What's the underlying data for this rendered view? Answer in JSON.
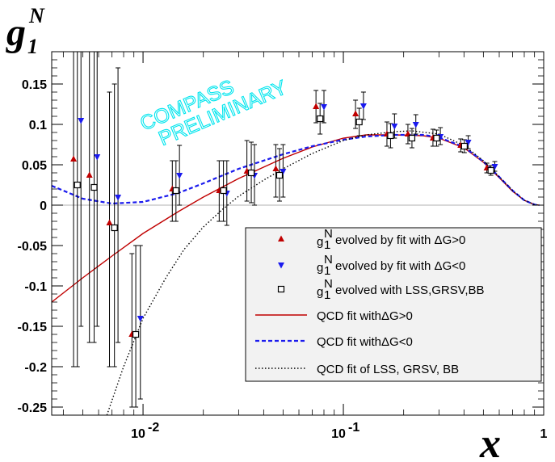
{
  "chart_data": {
    "type": "scatter",
    "x_scale": "log",
    "xlim": [
      0.0035,
      1
    ],
    "ylim": [
      -0.26,
      0.19
    ],
    "x_ticks": [
      {
        "value": 0.01,
        "label": "10"
      },
      {
        "value": 0.1,
        "label": "10"
      },
      {
        "value": 1,
        "label": "1"
      }
    ],
    "x_tick_exponents": [
      "-2",
      "-1",
      ""
    ],
    "y_ticks": [
      {
        "value": 0.15,
        "label": "0.15"
      },
      {
        "value": 0.1,
        "label": "0.1"
      },
      {
        "value": 0.05,
        "label": "0.05"
      },
      {
        "value": 0,
        "label": "0"
      },
      {
        "value": -0.05,
        "label": "-0.05"
      },
      {
        "value": -0.1,
        "label": "-0.1"
      },
      {
        "value": -0.15,
        "label": "-0.15"
      },
      {
        "value": -0.2,
        "label": "-0.2"
      },
      {
        "value": -0.25,
        "label": "-0.25"
      }
    ],
    "ylabel": {
      "main": "g",
      "sub": "1",
      "sup": "N"
    },
    "xlabel": "x",
    "annotation": [
      "COMPASS",
      "PRELIMINARY"
    ],
    "grid": false,
    "legend_position": "bottom-right",
    "colors": {
      "red": "#c00000",
      "blue": "#1a1aee",
      "black": "#000000"
    },
    "series": [
      {
        "name": "evolved by fit with ΔG>0",
        "marker": "triangle-up",
        "color": "#c00000",
        "points": [
          {
            "x": 0.0045,
            "y": 0.057,
            "lo": -0.2,
            "hi": 0.22
          },
          {
            "x": 0.0054,
            "y": 0.037,
            "lo": -0.17,
            "hi": 0.22
          },
          {
            "x": 0.0068,
            "y": -0.022,
            "lo": -0.2,
            "hi": 0.14
          },
          {
            "x": 0.0088,
            "y": -0.16,
            "lo": -0.25,
            "hi": -0.06
          },
          {
            "x": 0.014,
            "y": 0.02,
            "lo": -0.02,
            "hi": 0.055
          },
          {
            "x": 0.024,
            "y": 0.018,
            "lo": -0.02,
            "hi": 0.055
          },
          {
            "x": 0.033,
            "y": 0.042,
            "lo": 0.005,
            "hi": 0.08
          },
          {
            "x": 0.046,
            "y": 0.045,
            "lo": 0.01,
            "hi": 0.075
          },
          {
            "x": 0.073,
            "y": 0.122,
            "lo": 0.102,
            "hi": 0.142
          },
          {
            "x": 0.115,
            "y": 0.113,
            "lo": 0.095,
            "hi": 0.13
          },
          {
            "x": 0.165,
            "y": 0.088,
            "lo": 0.073,
            "hi": 0.103
          },
          {
            "x": 0.21,
            "y": 0.088,
            "lo": 0.076,
            "hi": 0.1
          },
          {
            "x": 0.28,
            "y": 0.083,
            "lo": 0.073,
            "hi": 0.094
          },
          {
            "x": 0.385,
            "y": 0.074,
            "lo": 0.066,
            "hi": 0.082
          },
          {
            "x": 0.52,
            "y": 0.046,
            "lo": 0.04,
            "hi": 0.052
          }
        ]
      },
      {
        "name": "evolved by fit with ΔG<0",
        "marker": "triangle-down",
        "color": "#1a1aee",
        "points": [
          {
            "x": 0.0049,
            "y": 0.105,
            "lo": -0.15,
            "hi": 0.24
          },
          {
            "x": 0.0059,
            "y": 0.06,
            "lo": -0.15,
            "hi": 0.25
          },
          {
            "x": 0.0075,
            "y": 0.01,
            "lo": -0.17,
            "hi": 0.17
          },
          {
            "x": 0.0097,
            "y": -0.14,
            "lo": -0.24,
            "hi": -0.05
          },
          {
            "x": 0.0152,
            "y": 0.037,
            "lo": 0.0,
            "hi": 0.074
          },
          {
            "x": 0.0262,
            "y": 0.015,
            "lo": -0.025,
            "hi": 0.055
          },
          {
            "x": 0.036,
            "y": 0.037,
            "lo": 0.0,
            "hi": 0.075
          },
          {
            "x": 0.05,
            "y": 0.042,
            "lo": 0.01,
            "hi": 0.075
          },
          {
            "x": 0.08,
            "y": 0.122,
            "lo": 0.102,
            "hi": 0.142
          },
          {
            "x": 0.126,
            "y": 0.123,
            "lo": 0.106,
            "hi": 0.14
          },
          {
            "x": 0.18,
            "y": 0.098,
            "lo": 0.083,
            "hi": 0.113
          },
          {
            "x": 0.23,
            "y": 0.1,
            "lo": 0.088,
            "hi": 0.112
          },
          {
            "x": 0.305,
            "y": 0.085,
            "lo": 0.075,
            "hi": 0.096
          },
          {
            "x": 0.42,
            "y": 0.078,
            "lo": 0.07,
            "hi": 0.086
          },
          {
            "x": 0.57,
            "y": 0.048,
            "lo": 0.042,
            "hi": 0.054
          }
        ]
      },
      {
        "name": "evolved with LSS,GRSV,BB",
        "marker": "open-square",
        "color": "#000000",
        "points": [
          {
            "x": 0.0047,
            "y": 0.025,
            "lo": -0.2,
            "hi": 0.23
          },
          {
            "x": 0.0057,
            "y": 0.022,
            "lo": -0.17,
            "hi": 0.23
          },
          {
            "x": 0.0072,
            "y": -0.028,
            "lo": -0.2,
            "hi": 0.15
          },
          {
            "x": 0.0092,
            "y": -0.16,
            "lo": -0.25,
            "hi": -0.05
          },
          {
            "x": 0.0146,
            "y": 0.018,
            "lo": -0.02,
            "hi": 0.055
          },
          {
            "x": 0.0252,
            "y": 0.018,
            "lo": -0.02,
            "hi": 0.055
          },
          {
            "x": 0.0347,
            "y": 0.04,
            "lo": 0.003,
            "hi": 0.078
          },
          {
            "x": 0.048,
            "y": 0.037,
            "lo": 0.005,
            "hi": 0.07
          },
          {
            "x": 0.0765,
            "y": 0.107,
            "lo": 0.088,
            "hi": 0.126
          },
          {
            "x": 0.12,
            "y": 0.103,
            "lo": 0.086,
            "hi": 0.12
          },
          {
            "x": 0.172,
            "y": 0.086,
            "lo": 0.071,
            "hi": 0.101
          },
          {
            "x": 0.22,
            "y": 0.083,
            "lo": 0.071,
            "hi": 0.095
          },
          {
            "x": 0.292,
            "y": 0.083,
            "lo": 0.073,
            "hi": 0.093
          },
          {
            "x": 0.402,
            "y": 0.073,
            "lo": 0.065,
            "hi": 0.081
          },
          {
            "x": 0.545,
            "y": 0.043,
            "lo": 0.037,
            "hi": 0.049
          }
        ]
      }
    ],
    "curves": [
      {
        "name": "QCD fit withΔG>0",
        "style": "solid",
        "color": "#c00000",
        "x": [
          0.0035,
          0.005,
          0.007,
          0.01,
          0.015,
          0.02,
          0.03,
          0.05,
          0.07,
          0.1,
          0.13,
          0.18,
          0.25,
          0.3,
          0.4,
          0.5,
          0.6,
          0.7,
          0.8,
          0.9,
          0.95
        ],
        "y": [
          -0.12,
          -0.09,
          -0.063,
          -0.035,
          -0.008,
          0.01,
          0.033,
          0.058,
          0.072,
          0.083,
          0.087,
          0.087,
          0.086,
          0.083,
          0.071,
          0.053,
          0.034,
          0.017,
          0.006,
          0.0007,
          0.0
        ]
      },
      {
        "name": "QCD fit withΔG<0",
        "style": "dashed",
        "color": "#1a1aee",
        "x": [
          0.0035,
          0.005,
          0.007,
          0.01,
          0.015,
          0.02,
          0.03,
          0.05,
          0.07,
          0.1,
          0.13,
          0.18,
          0.25,
          0.3,
          0.4,
          0.5,
          0.6,
          0.7,
          0.8,
          0.9,
          0.95
        ],
        "y": [
          0.024,
          0.008,
          0.002,
          0.004,
          0.015,
          0.027,
          0.045,
          0.063,
          0.073,
          0.081,
          0.085,
          0.087,
          0.087,
          0.084,
          0.072,
          0.054,
          0.035,
          0.018,
          0.006,
          0.0007,
          0.0
        ]
      },
      {
        "name": "QCD fit of LSS, GRSV, BB",
        "style": "dotted",
        "color": "#000000",
        "x": [
          0.0066,
          0.008,
          0.01,
          0.013,
          0.016,
          0.02,
          0.025,
          0.03,
          0.04,
          0.05,
          0.07,
          0.1,
          0.13,
          0.18,
          0.22,
          0.3,
          0.4,
          0.5,
          0.6,
          0.7,
          0.8,
          0.9,
          0.95
        ],
        "y": [
          -0.26,
          -0.2,
          -0.14,
          -0.09,
          -0.055,
          -0.027,
          -0.005,
          0.011,
          0.031,
          0.045,
          0.064,
          0.08,
          0.087,
          0.091,
          0.092,
          0.088,
          0.074,
          0.055,
          0.035,
          0.018,
          0.006,
          0.0007,
          0.0
        ]
      }
    ],
    "legend": {
      "symbol": {
        "main": "g",
        "sub": "1",
        "sup": "N"
      }
    }
  }
}
